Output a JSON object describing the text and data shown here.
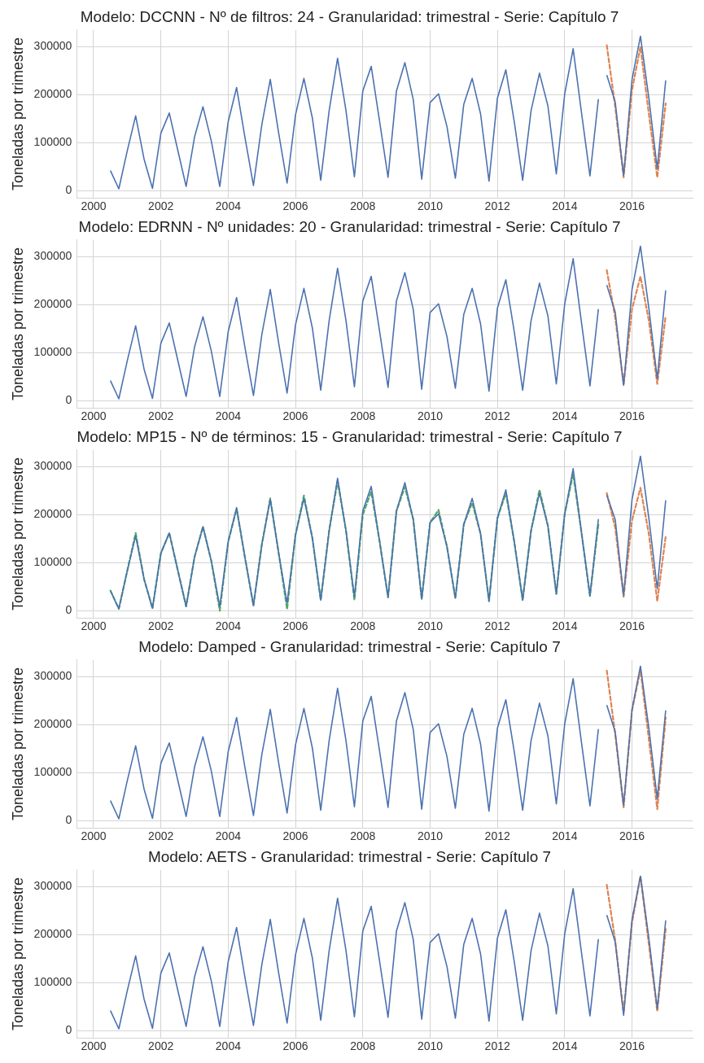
{
  "chart_data": [
    {
      "type": "line",
      "title": "Modelo: DCCNN - Nº de filtros: 24 - Granularidad: trimestral - Serie: Capítulo 7",
      "ylabel": "Toneladas por trimestre",
      "xlim": [
        1999.5,
        2017.8
      ],
      "xticks": [
        2000,
        2002,
        2004,
        2006,
        2008,
        2010,
        2012,
        2014,
        2016
      ],
      "ylim": [
        -15000,
        335000
      ],
      "yticks": [
        0,
        100000,
        200000,
        300000
      ],
      "grid": true,
      "series": [
        {
          "color": "#4c72b0",
          "x": [
            2000.5,
            2000.75,
            2001,
            2001.25,
            2001.5,
            2001.75,
            2002,
            2002.25,
            2002.5,
            2002.75,
            2003,
            2003.25,
            2003.5,
            2003.75,
            2004,
            2004.25,
            2004.5,
            2004.75,
            2005,
            2005.25,
            2005.5,
            2005.75,
            2006,
            2006.25,
            2006.5,
            2006.75,
            2007,
            2007.25,
            2007.5,
            2007.75,
            2008,
            2008.25,
            2008.5,
            2008.75,
            2009,
            2009.25,
            2009.5,
            2009.75,
            2010,
            2010.25,
            2010.5,
            2010.75,
            2011,
            2011.25,
            2011.5,
            2011.75,
            2012,
            2012.25,
            2012.5,
            2012.75,
            2013,
            2013.25,
            2013.5,
            2013.75,
            2014,
            2014.25,
            2014.5,
            2014.75,
            2015
          ],
          "values": [
            42000,
            4000,
            83000,
            156000,
            66000,
            5000,
            120000,
            162000,
            85000,
            9000,
            112000,
            175000,
            103000,
            9000,
            144000,
            215000,
            110000,
            11000,
            138000,
            232000,
            120000,
            16000,
            158000,
            234000,
            152000,
            22000,
            167000,
            276000,
            167000,
            29000,
            208000,
            259000,
            144000,
            28000,
            208000,
            267000,
            190000,
            24000,
            184000,
            202000,
            134000,
            26000,
            180000,
            234000,
            160000,
            20000,
            193000,
            252000,
            144000,
            22000,
            167000,
            245000,
            177000,
            35000,
            202000,
            296000,
            162000,
            31000,
            191000
          ]
        },
        {
          "color": "#4c72b0",
          "x": [
            2015.25,
            2015.5,
            2015.75,
            2016,
            2016.25,
            2016.5,
            2016.75,
            2017
          ],
          "values": [
            241000,
            185000,
            32000,
            232000,
            322000,
            193000,
            46000,
            230000
          ]
        },
        {
          "color": "#dd8452",
          "line_style": "dashed",
          "x": [
            2015.25,
            2015.5,
            2015.75,
            2016,
            2016.25,
            2016.5,
            2016.75,
            2017
          ],
          "values": [
            303000,
            175000,
            28000,
            210000,
            300000,
            160000,
            28000,
            182000
          ]
        }
      ]
    },
    {
      "type": "line",
      "title": "Modelo: EDRNN - Nº unidades: 20 - Granularidad: trimestral - Serie: Capítulo 7",
      "ylabel": "Toneladas por trimestre",
      "xlim": [
        1999.5,
        2017.8
      ],
      "xticks": [
        2000,
        2002,
        2004,
        2006,
        2008,
        2010,
        2012,
        2014,
        2016
      ],
      "ylim": [
        -15000,
        335000
      ],
      "yticks": [
        0,
        100000,
        200000,
        300000
      ],
      "grid": true,
      "series": [
        {
          "color": "#4c72b0",
          "x": [
            2000.5,
            2000.75,
            2001,
            2001.25,
            2001.5,
            2001.75,
            2002,
            2002.25,
            2002.5,
            2002.75,
            2003,
            2003.25,
            2003.5,
            2003.75,
            2004,
            2004.25,
            2004.5,
            2004.75,
            2005,
            2005.25,
            2005.5,
            2005.75,
            2006,
            2006.25,
            2006.5,
            2006.75,
            2007,
            2007.25,
            2007.5,
            2007.75,
            2008,
            2008.25,
            2008.5,
            2008.75,
            2009,
            2009.25,
            2009.5,
            2009.75,
            2010,
            2010.25,
            2010.5,
            2010.75,
            2011,
            2011.25,
            2011.5,
            2011.75,
            2012,
            2012.25,
            2012.5,
            2012.75,
            2013,
            2013.25,
            2013.5,
            2013.75,
            2014,
            2014.25,
            2014.5,
            2014.75,
            2015
          ],
          "values": [
            42000,
            4000,
            83000,
            156000,
            66000,
            5000,
            120000,
            162000,
            85000,
            9000,
            112000,
            175000,
            103000,
            9000,
            144000,
            215000,
            110000,
            11000,
            138000,
            232000,
            120000,
            16000,
            158000,
            234000,
            152000,
            22000,
            167000,
            276000,
            167000,
            29000,
            208000,
            259000,
            144000,
            28000,
            208000,
            267000,
            190000,
            24000,
            184000,
            202000,
            134000,
            26000,
            180000,
            234000,
            160000,
            20000,
            193000,
            252000,
            144000,
            22000,
            167000,
            245000,
            177000,
            35000,
            202000,
            296000,
            162000,
            31000,
            191000
          ]
        },
        {
          "color": "#4c72b0",
          "x": [
            2015.25,
            2015.5,
            2015.75,
            2016,
            2016.25,
            2016.5,
            2016.75,
            2017
          ],
          "values": [
            241000,
            185000,
            32000,
            232000,
            322000,
            193000,
            46000,
            230000
          ]
        },
        {
          "color": "#dd8452",
          "line_style": "dashed",
          "x": [
            2015.25,
            2015.5,
            2015.75,
            2016,
            2016.25,
            2016.5,
            2016.75,
            2017
          ],
          "values": [
            272000,
            173000,
            33000,
            191000,
            259000,
            167000,
            35000,
            177000
          ]
        }
      ]
    },
    {
      "type": "line",
      "title": "Modelo: MP15 - Nº de términos: 15 - Granularidad: trimestral - Serie: Capítulo 7",
      "ylabel": "Toneladas por trimestre",
      "xlim": [
        1999.5,
        2017.8
      ],
      "xticks": [
        2000,
        2002,
        2004,
        2006,
        2008,
        2010,
        2012,
        2014,
        2016
      ],
      "ylim": [
        -15000,
        335000
      ],
      "yticks": [
        0,
        100000,
        200000,
        300000
      ],
      "grid": true,
      "series": [
        {
          "color": "#4c72b0",
          "x": [
            2000.5,
            2000.75,
            2001,
            2001.25,
            2001.5,
            2001.75,
            2002,
            2002.25,
            2002.5,
            2002.75,
            2003,
            2003.25,
            2003.5,
            2003.75,
            2004,
            2004.25,
            2004.5,
            2004.75,
            2005,
            2005.25,
            2005.5,
            2005.75,
            2006,
            2006.25,
            2006.5,
            2006.75,
            2007,
            2007.25,
            2007.5,
            2007.75,
            2008,
            2008.25,
            2008.5,
            2008.75,
            2009,
            2009.25,
            2009.5,
            2009.75,
            2010,
            2010.25,
            2010.5,
            2010.75,
            2011,
            2011.25,
            2011.5,
            2011.75,
            2012,
            2012.25,
            2012.5,
            2012.75,
            2013,
            2013.25,
            2013.5,
            2013.75,
            2014,
            2014.25,
            2014.5,
            2014.75,
            2015
          ],
          "values": [
            42000,
            4000,
            83000,
            156000,
            66000,
            5000,
            120000,
            162000,
            85000,
            9000,
            112000,
            175000,
            103000,
            9000,
            144000,
            215000,
            110000,
            11000,
            138000,
            232000,
            120000,
            16000,
            158000,
            234000,
            152000,
            22000,
            167000,
            276000,
            167000,
            29000,
            208000,
            259000,
            144000,
            28000,
            208000,
            267000,
            190000,
            24000,
            184000,
            202000,
            134000,
            26000,
            180000,
            234000,
            160000,
            20000,
            193000,
            252000,
            144000,
            22000,
            167000,
            245000,
            177000,
            35000,
            202000,
            296000,
            162000,
            31000,
            191000
          ]
        },
        {
          "color": "#55a868",
          "line_style": "dashed",
          "x": [
            2000.5,
            2000.75,
            2001,
            2001.25,
            2001.5,
            2001.75,
            2002,
            2002.25,
            2002.5,
            2002.75,
            2003,
            2003.25,
            2003.5,
            2003.75,
            2004,
            2004.25,
            2004.5,
            2004.75,
            2005,
            2005.25,
            2005.5,
            2005.75,
            2006,
            2006.25,
            2006.5,
            2006.75,
            2007,
            2007.25,
            2007.5,
            2007.75,
            2008,
            2008.25,
            2008.5,
            2008.75,
            2009,
            2009.25,
            2009.5,
            2009.75,
            2010,
            2010.25,
            2010.5,
            2010.75,
            2011,
            2011.25,
            2011.5,
            2011.75,
            2012,
            2012.25,
            2012.5,
            2012.75,
            2013,
            2013.25,
            2013.5,
            2013.75,
            2014,
            2014.25,
            2014.5,
            2014.75,
            2015
          ],
          "values": [
            42000,
            4000,
            83000,
            162000,
            66000,
            5000,
            120000,
            162000,
            85000,
            9000,
            112000,
            175000,
            103000,
            0,
            144000,
            212000,
            110000,
            11000,
            138000,
            234000,
            120000,
            3000,
            158000,
            240000,
            152000,
            22000,
            167000,
            270000,
            167000,
            22000,
            200000,
            248000,
            144000,
            28000,
            208000,
            258000,
            190000,
            24000,
            184000,
            210000,
            134000,
            26000,
            180000,
            225000,
            160000,
            20000,
            193000,
            245000,
            144000,
            22000,
            167000,
            252000,
            177000,
            35000,
            202000,
            285000,
            162000,
            31000,
            180000
          ]
        },
        {
          "color": "#4c72b0",
          "x": [
            2015.25,
            2015.5,
            2015.75,
            2016,
            2016.25,
            2016.5,
            2016.75,
            2017
          ],
          "values": [
            241000,
            190000,
            32000,
            232000,
            322000,
            193000,
            46000,
            230000
          ]
        },
        {
          "color": "#dd8452",
          "line_style": "dashed",
          "x": [
            2015.25,
            2015.5,
            2015.75,
            2016,
            2016.25,
            2016.5,
            2016.75,
            2017
          ],
          "values": [
            245000,
            173000,
            29000,
            188000,
            256000,
            160000,
            20000,
            155000
          ]
        }
      ]
    },
    {
      "type": "line",
      "title": "Modelo: Damped - Granularidad: trimestral - Serie: Capítulo 7",
      "ylabel": "Toneladas por trimestre",
      "xlim": [
        1999.5,
        2017.8
      ],
      "xticks": [
        2000,
        2002,
        2004,
        2006,
        2008,
        2010,
        2012,
        2014,
        2016
      ],
      "ylim": [
        -15000,
        335000
      ],
      "yticks": [
        0,
        100000,
        200000,
        300000
      ],
      "grid": true,
      "series": [
        {
          "color": "#4c72b0",
          "x": [
            2000.5,
            2000.75,
            2001,
            2001.25,
            2001.5,
            2001.75,
            2002,
            2002.25,
            2002.5,
            2002.75,
            2003,
            2003.25,
            2003.5,
            2003.75,
            2004,
            2004.25,
            2004.5,
            2004.75,
            2005,
            2005.25,
            2005.5,
            2005.75,
            2006,
            2006.25,
            2006.5,
            2006.75,
            2007,
            2007.25,
            2007.5,
            2007.75,
            2008,
            2008.25,
            2008.5,
            2008.75,
            2009,
            2009.25,
            2009.5,
            2009.75,
            2010,
            2010.25,
            2010.5,
            2010.75,
            2011,
            2011.25,
            2011.5,
            2011.75,
            2012,
            2012.25,
            2012.5,
            2012.75,
            2013,
            2013.25,
            2013.5,
            2013.75,
            2014,
            2014.25,
            2014.5,
            2014.75,
            2015
          ],
          "values": [
            42000,
            4000,
            83000,
            156000,
            66000,
            5000,
            120000,
            162000,
            85000,
            9000,
            112000,
            175000,
            103000,
            9000,
            144000,
            215000,
            110000,
            11000,
            138000,
            232000,
            120000,
            16000,
            158000,
            234000,
            152000,
            22000,
            167000,
            276000,
            167000,
            29000,
            208000,
            259000,
            144000,
            28000,
            208000,
            267000,
            190000,
            24000,
            184000,
            202000,
            134000,
            26000,
            180000,
            234000,
            160000,
            20000,
            193000,
            252000,
            144000,
            22000,
            167000,
            245000,
            177000,
            35000,
            202000,
            296000,
            162000,
            31000,
            191000
          ]
        },
        {
          "color": "#4c72b0",
          "x": [
            2015.25,
            2015.5,
            2015.75,
            2016,
            2016.25,
            2016.5,
            2016.75,
            2017
          ],
          "values": [
            241000,
            185000,
            32000,
            232000,
            322000,
            193000,
            46000,
            230000
          ]
        },
        {
          "color": "#dd8452",
          "line_style": "dashed",
          "x": [
            2015.25,
            2015.5,
            2015.75,
            2016,
            2016.25,
            2016.5,
            2016.75,
            2017
          ],
          "values": [
            313000,
            180000,
            28000,
            230000,
            315000,
            170000,
            24000,
            215000
          ]
        }
      ]
    },
    {
      "type": "line",
      "title": "Modelo: AETS - Granularidad: trimestral - Serie: Capítulo 7",
      "ylabel": "Toneladas por trimestre",
      "xlim": [
        1999.5,
        2017.8
      ],
      "xticks": [
        2000,
        2002,
        2004,
        2006,
        2008,
        2010,
        2012,
        2014,
        2016
      ],
      "ylim": [
        -15000,
        335000
      ],
      "yticks": [
        0,
        100000,
        200000,
        300000
      ],
      "grid": true,
      "series": [
        {
          "color": "#4c72b0",
          "x": [
            2000.5,
            2000.75,
            2001,
            2001.25,
            2001.5,
            2001.75,
            2002,
            2002.25,
            2002.5,
            2002.75,
            2003,
            2003.25,
            2003.5,
            2003.75,
            2004,
            2004.25,
            2004.5,
            2004.75,
            2005,
            2005.25,
            2005.5,
            2005.75,
            2006,
            2006.25,
            2006.5,
            2006.75,
            2007,
            2007.25,
            2007.5,
            2007.75,
            2008,
            2008.25,
            2008.5,
            2008.75,
            2009,
            2009.25,
            2009.5,
            2009.75,
            2010,
            2010.25,
            2010.5,
            2010.75,
            2011,
            2011.25,
            2011.5,
            2011.75,
            2012,
            2012.25,
            2012.5,
            2012.75,
            2013,
            2013.25,
            2013.5,
            2013.75,
            2014,
            2014.25,
            2014.5,
            2014.75,
            2015
          ],
          "values": [
            42000,
            4000,
            83000,
            156000,
            66000,
            5000,
            120000,
            162000,
            85000,
            9000,
            112000,
            175000,
            103000,
            9000,
            144000,
            215000,
            110000,
            11000,
            138000,
            232000,
            120000,
            16000,
            158000,
            234000,
            152000,
            22000,
            167000,
            276000,
            167000,
            29000,
            208000,
            259000,
            144000,
            28000,
            208000,
            267000,
            190000,
            24000,
            184000,
            202000,
            134000,
            26000,
            180000,
            234000,
            160000,
            20000,
            193000,
            252000,
            144000,
            22000,
            167000,
            245000,
            177000,
            35000,
            202000,
            296000,
            162000,
            31000,
            191000
          ]
        },
        {
          "color": "#4c72b0",
          "x": [
            2015.25,
            2015.5,
            2015.75,
            2016,
            2016.25,
            2016.5,
            2016.75,
            2017
          ],
          "values": [
            241000,
            185000,
            32000,
            232000,
            322000,
            193000,
            46000,
            230000
          ]
        },
        {
          "color": "#dd8452",
          "line_style": "dashed",
          "x": [
            2015.25,
            2015.5,
            2015.75,
            2016,
            2016.25,
            2016.5,
            2016.75,
            2017
          ],
          "values": [
            304000,
            188000,
            38000,
            225000,
            322000,
            180000,
            40000,
            212000
          ]
        }
      ]
    }
  ]
}
